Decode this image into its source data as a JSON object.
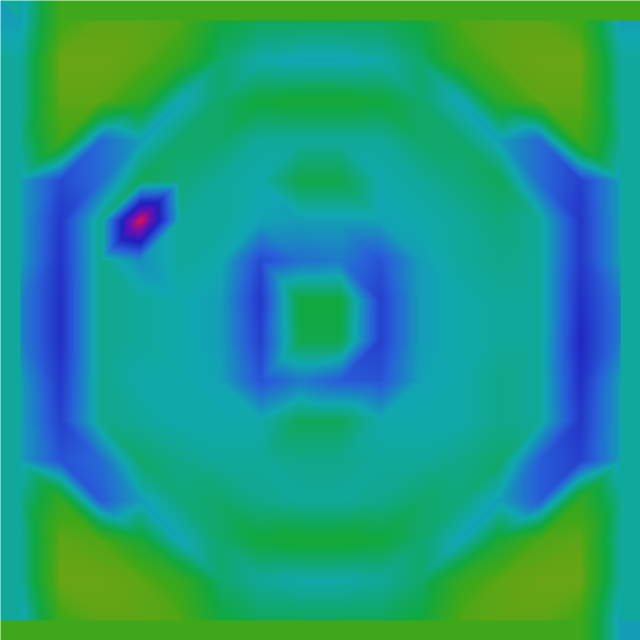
{
  "chart_data": {
    "type": "heatmap",
    "tick_labels": false,
    "zlim": [
      0,
      1
    ],
    "cells": [
      [
        0.55,
        0.85,
        0.9,
        0.9,
        0.88,
        0.72,
        0.68,
        0.68,
        0.68,
        0.68,
        0.72,
        0.88,
        0.9,
        0.9,
        0.85,
        0.55
      ],
      [
        0.6,
        0.92,
        0.92,
        0.9,
        0.82,
        0.66,
        0.58,
        0.56,
        0.56,
        0.58,
        0.66,
        0.82,
        0.9,
        0.92,
        0.92,
        0.6
      ],
      [
        0.6,
        0.9,
        0.9,
        0.8,
        0.56,
        0.66,
        0.72,
        0.74,
        0.74,
        0.72,
        0.66,
        0.56,
        0.8,
        0.9,
        0.9,
        0.6
      ],
      [
        0.62,
        0.85,
        0.45,
        0.55,
        0.66,
        0.66,
        0.6,
        0.6,
        0.6,
        0.6,
        0.66,
        0.66,
        0.55,
        0.45,
        0.85,
        0.62
      ],
      [
        0.55,
        0.38,
        0.45,
        0.68,
        0.64,
        0.6,
        0.58,
        0.7,
        0.7,
        0.58,
        0.6,
        0.64,
        0.68,
        0.45,
        0.36,
        0.55
      ],
      [
        0.55,
        0.34,
        0.62,
        0.0,
        0.6,
        0.6,
        0.56,
        0.55,
        0.55,
        0.56,
        0.58,
        0.6,
        0.64,
        0.6,
        0.34,
        0.55
      ],
      [
        0.55,
        0.33,
        0.62,
        0.52,
        0.6,
        0.58,
        0.38,
        0.46,
        0.48,
        0.4,
        0.55,
        0.6,
        0.62,
        0.6,
        0.34,
        0.55
      ],
      [
        0.5,
        0.32,
        0.62,
        0.6,
        0.58,
        0.55,
        0.34,
        0.72,
        0.72,
        0.36,
        0.55,
        0.58,
        0.6,
        0.6,
        0.32,
        0.48
      ],
      [
        0.5,
        0.32,
        0.62,
        0.6,
        0.58,
        0.55,
        0.36,
        0.7,
        0.7,
        0.36,
        0.55,
        0.58,
        0.6,
        0.6,
        0.3,
        0.48
      ],
      [
        0.55,
        0.34,
        0.62,
        0.58,
        0.58,
        0.56,
        0.4,
        0.48,
        0.42,
        0.4,
        0.56,
        0.58,
        0.62,
        0.6,
        0.32,
        0.55
      ],
      [
        0.55,
        0.36,
        0.62,
        0.6,
        0.58,
        0.58,
        0.58,
        0.68,
        0.68,
        0.58,
        0.58,
        0.58,
        0.62,
        0.6,
        0.34,
        0.55
      ],
      [
        0.55,
        0.4,
        0.45,
        0.66,
        0.62,
        0.6,
        0.6,
        0.62,
        0.62,
        0.6,
        0.6,
        0.62,
        0.66,
        0.42,
        0.36,
        0.55
      ],
      [
        0.62,
        0.82,
        0.42,
        0.55,
        0.64,
        0.66,
        0.62,
        0.6,
        0.6,
        0.62,
        0.66,
        0.64,
        0.55,
        0.42,
        0.82,
        0.62
      ],
      [
        0.6,
        0.9,
        0.88,
        0.75,
        0.56,
        0.66,
        0.72,
        0.74,
        0.74,
        0.72,
        0.66,
        0.56,
        0.75,
        0.88,
        0.9,
        0.6
      ],
      [
        0.6,
        0.92,
        0.92,
        0.9,
        0.82,
        0.66,
        0.6,
        0.58,
        0.58,
        0.6,
        0.66,
        0.82,
        0.9,
        0.92,
        0.92,
        0.6
      ],
      [
        0.55,
        0.85,
        0.9,
        0.9,
        0.88,
        0.72,
        0.68,
        0.68,
        0.68,
        0.68,
        0.72,
        0.88,
        0.9,
        0.9,
        0.85,
        0.55
      ]
    ]
  }
}
